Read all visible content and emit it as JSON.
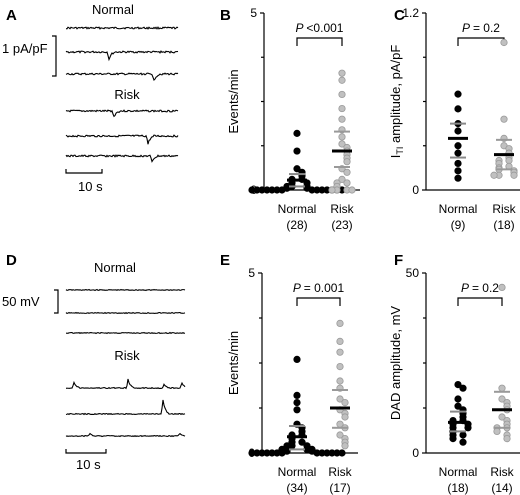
{
  "colors": {
    "normal": "#000000",
    "risk": "#c0c0c0",
    "mean_normal": "#000000",
    "mean_risk": "#999999"
  },
  "traces": [
    {
      "id": "A",
      "panel_label": "A",
      "normal_title": "Normal",
      "risk_title": "Risk",
      "scale_y_label": "1 pA/pF",
      "scale_x_label": "10 s",
      "normal_events": [
        [],
        [
          0.38
        ],
        [
          0.78
        ]
      ],
      "risk_events": [
        [
          0.42
        ],
        [
          0.73
        ],
        [
          0.76
        ]
      ],
      "event_size": 9,
      "event_dir": 1,
      "noise": 0.9
    },
    {
      "id": "D",
      "panel_label": "D",
      "normal_title": "Normal",
      "risk_title": "Risk",
      "scale_y_label": "50 mV",
      "scale_x_label": "10 s",
      "normal_events": [
        [],
        [],
        []
      ],
      "risk_events": [
        [
          0.06,
          0.52,
          0.82,
          0.97
        ],
        [
          0.81
        ],
        [
          0.2,
          0.95
        ]
      ],
      "risk_event_sizes": [
        [
          8,
          9,
          4,
          7
        ],
        [
          18
        ],
        [
          3,
          4
        ]
      ],
      "event_dir": -1,
      "noise": 0.5
    }
  ],
  "chart_data": [
    {
      "type": "scatter",
      "panel_label": "B",
      "title": "",
      "ylabel": "Events/min",
      "ylim": [
        0,
        5
      ],
      "yticks": [
        0,
        5
      ],
      "p_label": "P <0.001",
      "categories": [
        "Normal",
        "Risk"
      ],
      "counts": [
        "(28)",
        "(23)"
      ],
      "series": [
        {
          "name": "Normal",
          "values": [
            1.6,
            1.1,
            0.6,
            0.5,
            0.4,
            0.3,
            0.3,
            0.2,
            0.2,
            0.1,
            0.1,
            0.1,
            0.05,
            0.05,
            0,
            0,
            0,
            0,
            0,
            0,
            0,
            0,
            0,
            0,
            0,
            0,
            0,
            0
          ],
          "mean": 0.28,
          "sd_lo": 0.1,
          "sd_hi": 0.45
        },
        {
          "name": "Risk",
          "values": [
            3.3,
            3.1,
            2.7,
            2.3,
            2.0,
            1.7,
            1.5,
            1.3,
            1.2,
            1.1,
            1.0,
            0.9,
            0.8,
            0.6,
            0.5,
            0.3,
            0.2,
            0.2,
            0.1,
            0,
            0,
            0,
            0
          ],
          "mean": 1.1,
          "sd_lo": 0.65,
          "sd_hi": 1.65
        }
      ]
    },
    {
      "type": "scatter",
      "panel_label": "C",
      "title": "",
      "ylabel": "I",
      "ylabel_sub": "TI",
      "ylabel_rest": " amplitude, pA/pF",
      "ylim": [
        0,
        1.2
      ],
      "yticks": [
        0,
        1.2
      ],
      "p_label": "P = 0.2",
      "categories": [
        "Normal",
        "Risk"
      ],
      "counts": [
        "(9)",
        "(18)"
      ],
      "series": [
        {
          "name": "Normal",
          "values": [
            0.65,
            0.55,
            0.45,
            0.4,
            0.3,
            0.25,
            0.18,
            0.13,
            0.08
          ],
          "mean": 0.35,
          "sd_lo": 0.22,
          "sd_hi": 0.45
        },
        {
          "name": "Risk",
          "values": [
            1.0,
            0.48,
            0.35,
            0.3,
            0.28,
            0.25,
            0.22,
            0.2,
            0.2,
            0.18,
            0.16,
            0.15,
            0.14,
            0.13,
            0.12,
            0.1,
            0.1,
            0.1
          ],
          "mean": 0.24,
          "sd_lo": 0.14,
          "sd_hi": 0.34
        }
      ]
    },
    {
      "type": "scatter",
      "panel_label": "E",
      "title": "",
      "ylabel": "Events/min",
      "ylim": [
        0,
        5
      ],
      "yticks": [
        0,
        5
      ],
      "p_label": "P = 0.001",
      "categories": [
        "Normal",
        "Risk"
      ],
      "counts": [
        "(34)",
        "(17)"
      ],
      "series": [
        {
          "name": "Normal",
          "values": [
            2.6,
            1.6,
            1.4,
            1.2,
            0.8,
            0.7,
            0.6,
            0.5,
            0.5,
            0.4,
            0.3,
            0.3,
            0.2,
            0.2,
            0.2,
            0.1,
            0.1,
            0.1,
            0.1,
            0.05,
            0.05,
            0,
            0,
            0,
            0,
            0,
            0,
            0,
            0,
            0,
            0,
            0,
            0,
            0
          ],
          "mean": 0.45,
          "sd_lo": 0.1,
          "sd_hi": 0.75
        },
        {
          "name": "Risk",
          "values": [
            3.6,
            3.1,
            2.8,
            2.4,
            2.0,
            1.8,
            1.5,
            1.4,
            1.2,
            1.1,
            1.0,
            0.8,
            0.7,
            0.5,
            0.4,
            0.3,
            0.2
          ],
          "mean": 1.25,
          "sd_lo": 0.7,
          "sd_hi": 1.75
        }
      ]
    },
    {
      "type": "scatter",
      "panel_label": "F",
      "title": "",
      "ylabel": "DAD amplitude, mV",
      "ylim": [
        0,
        50
      ],
      "yticks": [
        0,
        50
      ],
      "p_label": "P = 0.2",
      "categories": [
        "Normal",
        "Risk"
      ],
      "counts": [
        "(18)",
        "(14)"
      ],
      "series": [
        {
          "name": "Normal",
          "values": [
            19,
            18,
            15,
            13,
            12,
            11,
            10,
            9,
            9,
            8,
            8,
            7,
            7,
            6,
            5,
            5,
            4,
            3
          ],
          "mean": 8.5,
          "sd_lo": 6,
          "sd_hi": 11.5
        },
        {
          "name": "Risk",
          "values": [
            46,
            18,
            15,
            14,
            13,
            12,
            10,
            9,
            8,
            7,
            7,
            6,
            5,
            4
          ],
          "mean": 12,
          "sd_lo": 7,
          "sd_hi": 17
        }
      ]
    }
  ]
}
